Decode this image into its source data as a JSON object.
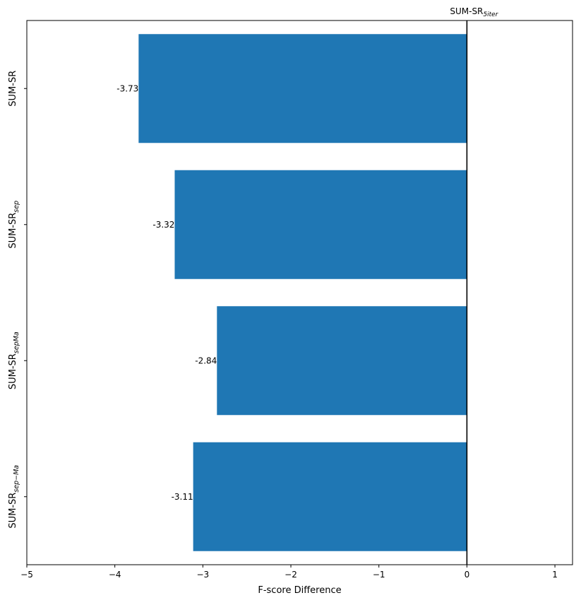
{
  "chart_data": {
    "type": "bar",
    "orientation": "horizontal",
    "categories": [
      {
        "base": "SUM-SR",
        "sub": ""
      },
      {
        "base": "SUM-SR",
        "sub": "sep"
      },
      {
        "base": "SUM-SR",
        "sub": "sepMa"
      },
      {
        "base": "SUM-SR",
        "sub": "sep−Ma"
      }
    ],
    "values": [
      -3.73,
      -3.32,
      -2.84,
      -3.11
    ],
    "value_labels": [
      "-3.73",
      "-3.32",
      "-2.84",
      "-3.11"
    ],
    "bar_color": "#1f77b4",
    "xlabel": "F-score Difference",
    "ylabel": "",
    "xlim": [
      -5,
      1.2
    ],
    "xticks": [
      -5,
      -4,
      -3,
      -2,
      -1,
      0,
      1
    ],
    "xtick_labels": [
      "−5",
      "−4",
      "−3",
      "−2",
      "−1",
      "0",
      "1"
    ],
    "reference_line": {
      "x": 0,
      "label_base": "SUM-SR",
      "label_sub": "5iter"
    },
    "grid": false
  }
}
